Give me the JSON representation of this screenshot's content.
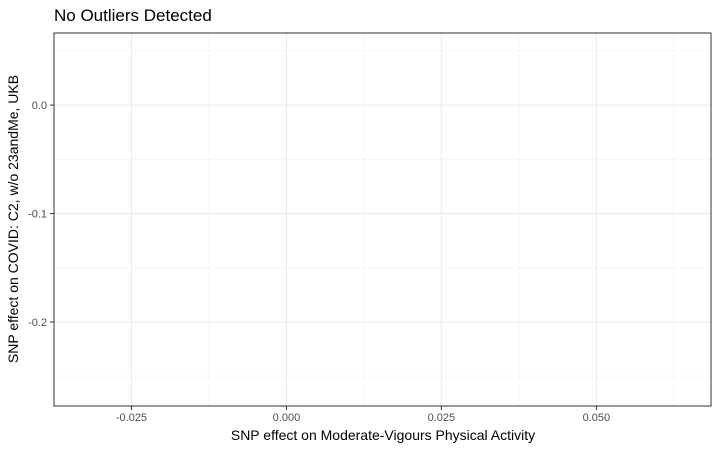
{
  "chart_data": {
    "type": "scatter",
    "title": "No Outliers Detected",
    "xlabel": "SNP effect on Moderate-Vigours Physical Activity",
    "ylabel": "SNP effect on COVID: C2, w/o 23andMe, UKB",
    "xlim": [
      -0.0375,
      0.0685
    ],
    "ylim": [
      -0.2775,
      0.0665
    ],
    "x_ticks": [
      -0.025,
      0.0,
      0.025,
      0.05
    ],
    "x_tick_labels": [
      "-0.025",
      "0.000",
      "0.025",
      "0.050"
    ],
    "y_ticks": [
      0.0,
      -0.1,
      -0.2
    ],
    "y_tick_labels": [
      "0.0",
      "-0.1",
      "-0.2"
    ],
    "grid": true,
    "series": [
      {
        "x": [],
        "y": []
      }
    ],
    "colors": {
      "panel_border": "#333333",
      "grid_major": "#ebebeb",
      "grid_minor": "#f5f5f5",
      "tick_text": "#4d4d4d"
    }
  }
}
